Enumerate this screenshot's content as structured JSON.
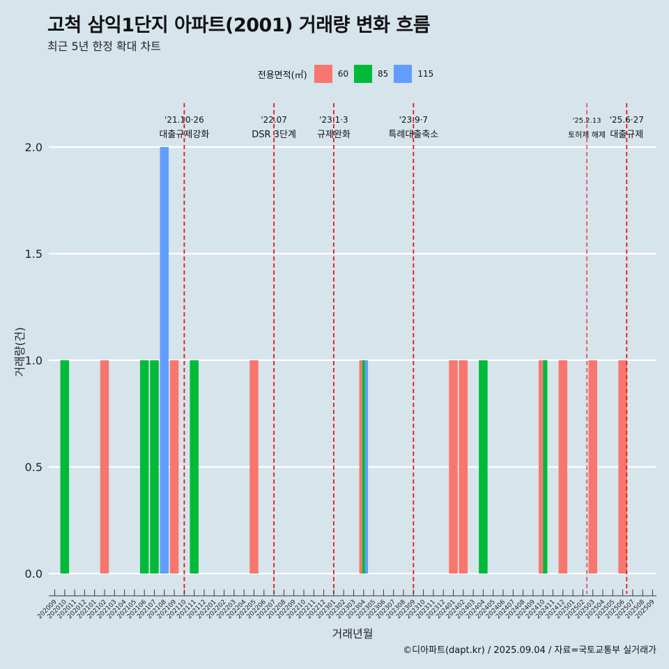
{
  "header": {
    "title": "고척 삼익1단지 아파트(2001) 거래량 변화 흐름",
    "subtitle": "최근 5년 한정 확대 차트"
  },
  "legend": {
    "title": "전용면적(㎡)",
    "items": [
      {
        "label": "60",
        "color": "#f8766d"
      },
      {
        "label": "85",
        "color": "#00ba38"
      },
      {
        "label": "115",
        "color": "#619cff"
      }
    ]
  },
  "caption": "©디아파트(dapt.kr) / 2025.09.04 / 자료=국토교통부 실거래가",
  "chart_data": {
    "type": "bar",
    "title": "고척 삼익1단지 아파트(2001) 거래량 변화 흐름",
    "xlabel": "거래년월",
    "ylabel": "거래량(건)",
    "ylim": [
      0,
      2
    ],
    "yticks": [
      "0.0",
      "0.5",
      "1.0",
      "1.5",
      "2.0"
    ],
    "ytick_values": [
      0,
      0.5,
      1,
      1.5,
      2
    ],
    "categories": [
      "202009",
      "202010",
      "202011",
      "202012",
      "202101",
      "202102",
      "202103",
      "202104",
      "202105",
      "202106",
      "202107",
      "202108",
      "202109",
      "202110",
      "202111",
      "202112",
      "202201",
      "202202",
      "202203",
      "202204",
      "202205",
      "202206",
      "202207",
      "202208",
      "202209",
      "202210",
      "202211",
      "202212",
      "202301",
      "202302",
      "202303",
      "202304",
      "202305",
      "202306",
      "202307",
      "202308",
      "202309",
      "202310",
      "202311",
      "202312",
      "202401",
      "202402",
      "202403",
      "202404",
      "202405",
      "202406",
      "202407",
      "202408",
      "202409",
      "202410",
      "202411",
      "202412",
      "202501",
      "202502",
      "202503",
      "202504",
      "202505",
      "202506",
      "202507",
      "202508",
      "202509"
    ],
    "series": [
      {
        "name": "60",
        "color": "#f8766d",
        "values": [
          0,
          0,
          0,
          0,
          0,
          1,
          0,
          0,
          0,
          0,
          0,
          0,
          1,
          0,
          0,
          0,
          0,
          0,
          0,
          0,
          1,
          0,
          0,
          0,
          0,
          0,
          0,
          0,
          0,
          0,
          0,
          1,
          0,
          0,
          0,
          0,
          0,
          0,
          0,
          0,
          1,
          1,
          0,
          0,
          0,
          0,
          0,
          0,
          0,
          1,
          0,
          1,
          0,
          0,
          1,
          0,
          0,
          1,
          0,
          0,
          0
        ]
      },
      {
        "name": "85",
        "color": "#00ba38",
        "values": [
          0,
          1,
          0,
          0,
          0,
          0,
          0,
          0,
          0,
          1,
          1,
          0,
          0,
          0,
          1,
          0,
          0,
          0,
          0,
          0,
          0,
          0,
          0,
          0,
          0,
          0,
          0,
          0,
          0,
          0,
          0,
          1,
          0,
          0,
          0,
          0,
          0,
          0,
          0,
          0,
          0,
          0,
          0,
          1,
          0,
          0,
          0,
          0,
          0,
          1,
          0,
          0,
          0,
          0,
          0,
          0,
          0,
          0,
          0,
          0,
          0
        ]
      },
      {
        "name": "115",
        "color": "#619cff",
        "values": [
          0,
          0,
          0,
          0,
          0,
          0,
          0,
          0,
          0,
          0,
          0,
          2,
          0,
          0,
          0,
          0,
          0,
          0,
          0,
          0,
          0,
          0,
          0,
          0,
          0,
          0,
          0,
          0,
          0,
          0,
          0,
          1,
          0,
          0,
          0,
          0,
          0,
          0,
          0,
          0,
          0,
          0,
          0,
          0,
          0,
          0,
          0,
          0,
          0,
          0,
          0,
          0,
          0,
          0,
          0,
          0,
          0,
          0,
          0,
          0,
          0
        ]
      }
    ],
    "events": [
      {
        "pos": 13.0,
        "date": "'21.10·26",
        "label": "대출규제강화",
        "small": false
      },
      {
        "pos": 22.0,
        "date": "'22.07",
        "label": "DSR 3단계",
        "small": false
      },
      {
        "pos": 28.0,
        "date": "'23.1·3",
        "label": "규제완화",
        "small": false
      },
      {
        "pos": 36.0,
        "date": "'23.9·7",
        "label": "특례대출축소",
        "small": false
      },
      {
        "pos": 53.4,
        "date": "'25.2.13",
        "label": "토허제 해제",
        "small": true
      },
      {
        "pos": 57.4,
        "date": "'25.6·27",
        "label": "대출규제",
        "small": false
      }
    ]
  }
}
